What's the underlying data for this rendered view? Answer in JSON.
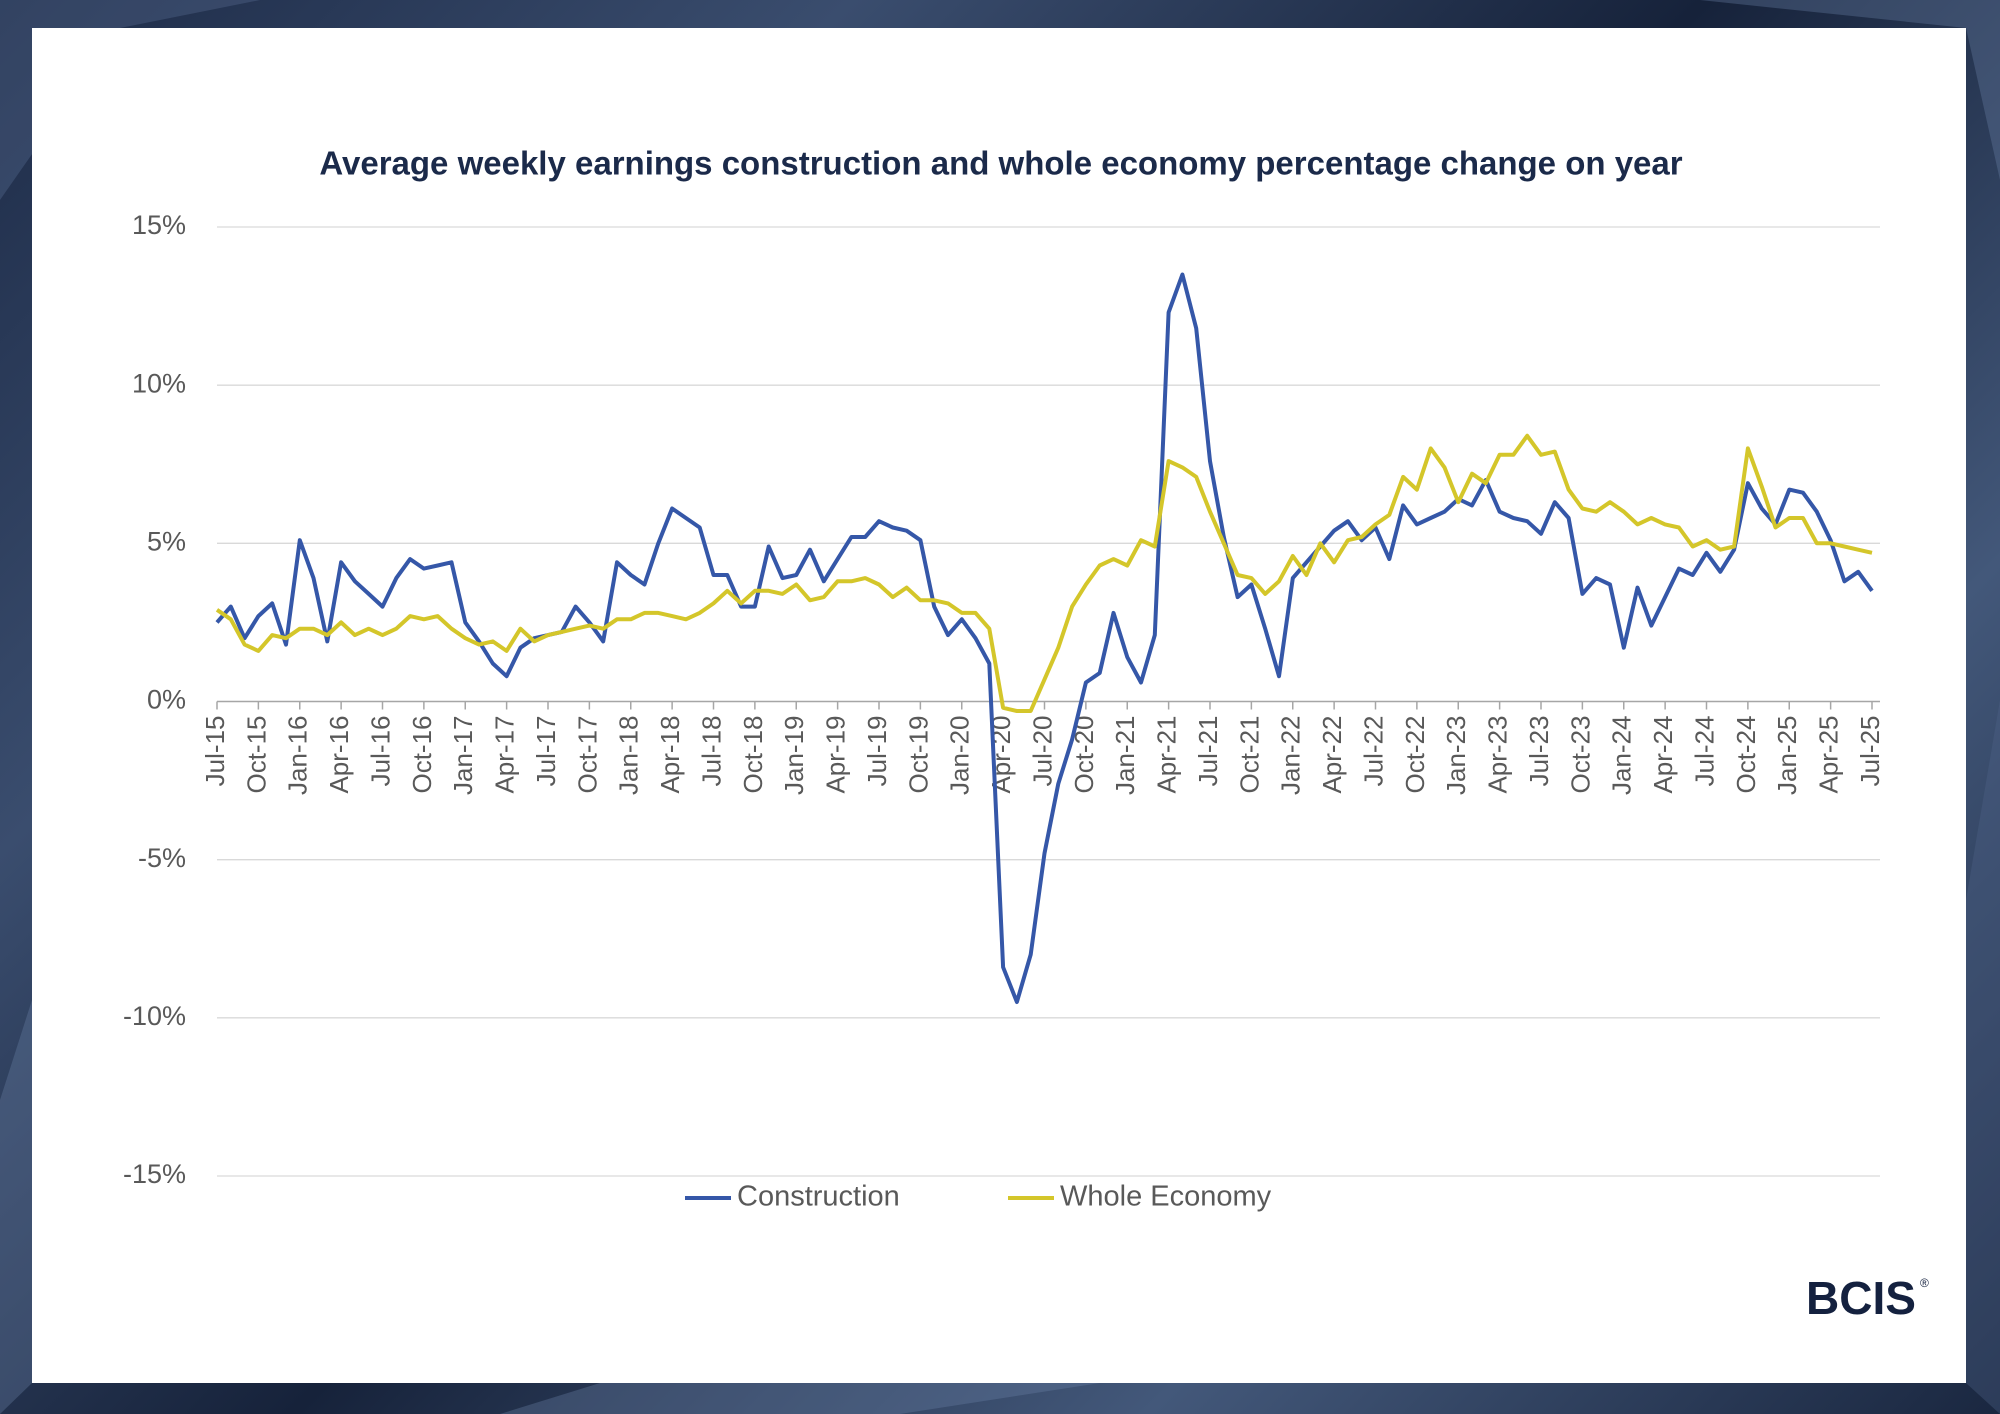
{
  "chart_data": {
    "type": "line",
    "title": "Average weekly earnings construction and whole economy percentage change on year",
    "logo": "BCIS",
    "logo_mark": "®",
    "categories": [
      "Jul-15",
      null,
      null,
      "Oct-15",
      null,
      null,
      "Jan-16",
      null,
      null,
      "Apr-16",
      null,
      null,
      "Jul-16",
      null,
      null,
      "Oct-16",
      null,
      null,
      "Jan-17",
      null,
      null,
      "Apr-17",
      null,
      null,
      "Jul-17",
      null,
      null,
      "Oct-17",
      null,
      null,
      "Jan-18",
      null,
      null,
      "Apr-18",
      null,
      null,
      "Jul-18",
      null,
      null,
      "Oct-18",
      null,
      null,
      "Jan-19",
      null,
      null,
      "Apr-19",
      null,
      null,
      "Jul-19",
      null,
      null,
      "Oct-19",
      null,
      null,
      "Jan-20",
      null,
      null,
      "Apr-20",
      null,
      null,
      "Jul-20",
      null,
      null,
      "Oct-20",
      null,
      null,
      "Jan-21",
      null,
      null,
      "Apr-21",
      null,
      null,
      "Jul-21",
      null,
      null,
      "Oct-21",
      null,
      null,
      "Jan-22",
      null,
      null,
      "Apr-22",
      null,
      null,
      "Jul-22",
      null,
      null,
      "Oct-22",
      null,
      null,
      "Jan-23",
      null,
      null,
      "Apr-23",
      null,
      null,
      "Jul-23",
      null,
      null,
      "Oct-23",
      null,
      null,
      "Jan-24",
      null,
      null,
      "Apr-24",
      null,
      null,
      "Jul-24",
      null,
      null,
      "Oct-24",
      null,
      null,
      "Jan-25",
      null,
      null,
      "Apr-25",
      null,
      null,
      "Jul-25"
    ],
    "series": [
      {
        "name": "Construction",
        "color": "#3557a8",
        "values": [
          2.5,
          3.0,
          2.0,
          2.7,
          3.1,
          1.8,
          5.1,
          3.9,
          1.9,
          4.4,
          3.8,
          3.4,
          3.0,
          3.9,
          4.5,
          4.2,
          4.3,
          4.4,
          2.5,
          1.9,
          1.2,
          0.8,
          1.7,
          2.0,
          2.1,
          2.2,
          3.0,
          2.5,
          1.9,
          4.4,
          4.0,
          3.7,
          5.0,
          6.1,
          5.8,
          5.5,
          4.0,
          4.0,
          3.0,
          3.0,
          4.9,
          3.9,
          4.0,
          4.8,
          3.8,
          4.5,
          5.2,
          5.2,
          5.7,
          5.5,
          5.4,
          5.1,
          3.0,
          2.1,
          2.6,
          2.0,
          1.2,
          -8.4,
          -9.5,
          -8.0,
          -4.8,
          -2.6,
          -1.2,
          0.6,
          0.9,
          2.8,
          1.4,
          0.6,
          2.1,
          12.3,
          13.5,
          11.8,
          7.6,
          5.2,
          3.3,
          3.7,
          2.3,
          0.8,
          3.9,
          4.4,
          4.9,
          5.4,
          5.7,
          5.1,
          5.5,
          4.5,
          6.2,
          5.6,
          5.8,
          6.0,
          6.4,
          6.2,
          7.0,
          6.0,
          5.8,
          5.7,
          5.3,
          6.3,
          5.8,
          3.4,
          3.9,
          3.7,
          1.7,
          3.6,
          2.4,
          3.3,
          4.2,
          4.0,
          4.7,
          4.1,
          4.8,
          6.9,
          6.1,
          5.6,
          6.7,
          6.6,
          6.0,
          5.1,
          3.8,
          4.1,
          3.5
        ]
      },
      {
        "name": "Whole Economy",
        "color": "#d4c62a",
        "values": [
          2.9,
          2.6,
          1.8,
          1.6,
          2.1,
          2.0,
          2.3,
          2.3,
          2.1,
          2.5,
          2.1,
          2.3,
          2.1,
          2.3,
          2.7,
          2.6,
          2.7,
          2.3,
          2.0,
          1.8,
          1.9,
          1.6,
          2.3,
          1.9,
          2.1,
          2.2,
          2.3,
          2.4,
          2.3,
          2.6,
          2.6,
          2.8,
          2.8,
          2.7,
          2.6,
          2.8,
          3.1,
          3.5,
          3.1,
          3.5,
          3.5,
          3.4,
          3.7,
          3.2,
          3.3,
          3.8,
          3.8,
          3.9,
          3.7,
          3.3,
          3.6,
          3.2,
          3.2,
          3.1,
          2.8,
          2.8,
          2.3,
          -0.2,
          -0.3,
          -0.3,
          0.7,
          1.7,
          3.0,
          3.7,
          4.3,
          4.5,
          4.3,
          5.1,
          4.9,
          7.6,
          7.4,
          7.1,
          6.0,
          5.0,
          4.0,
          3.9,
          3.4,
          3.8,
          4.6,
          4.0,
          5.0,
          4.4,
          5.1,
          5.2,
          5.6,
          5.9,
          7.1,
          6.7,
          8.0,
          7.4,
          6.3,
          7.2,
          6.9,
          7.8,
          7.8,
          8.4,
          7.8,
          7.9,
          6.7,
          6.1,
          6.0,
          6.3,
          6.0,
          5.6,
          5.8,
          5.6,
          5.5,
          4.9,
          5.1,
          4.8,
          4.9,
          8.0,
          6.8,
          5.5,
          5.8,
          5.8,
          5.0,
          5.0,
          4.9,
          4.8,
          4.7
        ]
      }
    ],
    "ylim": [
      -15,
      15
    ],
    "yticks": [
      {
        "value": -15,
        "label": "-15%"
      },
      {
        "value": -10,
        "label": "-10%"
      },
      {
        "value": -5,
        "label": "-5%"
      },
      {
        "value": 0,
        "label": "0%"
      },
      {
        "value": 5,
        "label": "5%"
      },
      {
        "value": 10,
        "label": "10%"
      },
      {
        "value": 15,
        "label": "15%"
      }
    ],
    "grid": true,
    "legend": "bottom"
  }
}
